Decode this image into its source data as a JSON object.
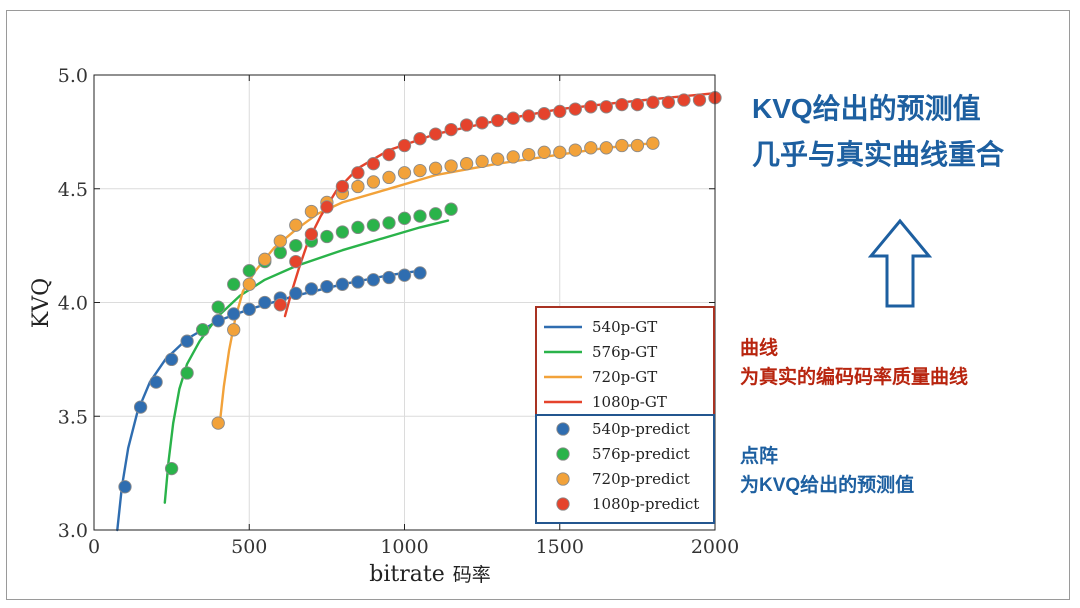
{
  "annotations": {
    "headline_line1": "KVQ给出的预测值",
    "headline_line2": "几乎与真实曲线重合",
    "curve_title": "曲线",
    "curve_desc": "为真实的编码码率质量曲线",
    "dots_title": "点阵",
    "dots_desc": "为KVQ给出的预测值"
  },
  "colors": {
    "540p": "#2f6db0",
    "576p": "#2ab34a",
    "720p": "#f2a23a",
    "1080p": "#e5432c",
    "gt_box": "#a83222",
    "predict_box": "#23568f",
    "annotation_blue": "#1d5fa0",
    "annotation_red": "#b8250f"
  },
  "chart_data": {
    "type": "line",
    "xlabel_main": "bitrate",
    "xlabel_cn": "码率",
    "ylabel": "KVQ",
    "xlim": [
      0,
      2000
    ],
    "ylim": [
      3.0,
      5.0
    ],
    "xticks": [
      0,
      500,
      1000,
      1500,
      2000
    ],
    "yticks": [
      3.0,
      3.5,
      4.0,
      4.5,
      5.0
    ],
    "ytick_labels": [
      "3.0",
      "3.5",
      "4.0",
      "4.5",
      "5.0"
    ],
    "grid": true,
    "legend_placement": "lower-right",
    "gt_series": [
      {
        "name": "540p-GT",
        "color_key": "540p",
        "x": [
          75,
          90,
          110,
          140,
          180,
          230,
          300,
          400,
          500,
          650,
          800,
          950,
          1050
        ],
        "y": [
          3.0,
          3.19,
          3.36,
          3.52,
          3.65,
          3.75,
          3.84,
          3.92,
          3.97,
          4.03,
          4.08,
          4.12,
          4.14
        ]
      },
      {
        "name": "576p-GT",
        "color_key": "576p",
        "x": [
          228,
          240,
          255,
          275,
          300,
          340,
          400,
          470,
          550,
          650,
          800,
          950,
          1050,
          1140
        ],
        "y": [
          3.12,
          3.3,
          3.47,
          3.62,
          3.73,
          3.83,
          3.94,
          4.03,
          4.1,
          4.16,
          4.23,
          4.29,
          4.33,
          4.36
        ]
      },
      {
        "name": "720p-GT",
        "color_key": "720p",
        "x": [
          405,
          418,
          435,
          455,
          480,
          520,
          580,
          650,
          720,
          800,
          950,
          1100,
          1300,
          1500,
          1650,
          1800
        ],
        "y": [
          3.47,
          3.63,
          3.79,
          3.93,
          4.05,
          4.14,
          4.24,
          4.32,
          4.39,
          4.44,
          4.5,
          4.56,
          4.61,
          4.65,
          4.68,
          4.7
        ]
      },
      {
        "name": "1080p-GT",
        "color_key": "1080p",
        "x": [
          615,
          635,
          660,
          690,
          730,
          780,
          850,
          950,
          1100,
          1300,
          1500,
          1700,
          1850,
          2000
        ],
        "y": [
          3.94,
          4.04,
          4.15,
          4.27,
          4.38,
          4.49,
          4.59,
          4.67,
          4.74,
          4.8,
          4.85,
          4.88,
          4.9,
          4.92
        ]
      }
    ],
    "predict_series": [
      {
        "name": "540p-predict",
        "color_key": "540p",
        "x": [
          100,
          150,
          200,
          250,
          300,
          350,
          400,
          450,
          500,
          550,
          600,
          650,
          700,
          750,
          800,
          850,
          900,
          950,
          1000,
          1050
        ],
        "y": [
          3.19,
          3.54,
          3.65,
          3.75,
          3.83,
          3.88,
          3.92,
          3.95,
          3.97,
          4.0,
          4.02,
          4.04,
          4.06,
          4.07,
          4.08,
          4.09,
          4.1,
          4.11,
          4.12,
          4.13
        ]
      },
      {
        "name": "576p-predict",
        "color_key": "576p",
        "x": [
          250,
          300,
          350,
          400,
          450,
          500,
          550,
          600,
          650,
          700,
          750,
          800,
          850,
          900,
          950,
          1000,
          1050,
          1100,
          1150
        ],
        "y": [
          3.27,
          3.69,
          3.88,
          3.98,
          4.08,
          4.14,
          4.18,
          4.22,
          4.25,
          4.27,
          4.29,
          4.31,
          4.33,
          4.34,
          4.35,
          4.37,
          4.38,
          4.39,
          4.41
        ]
      },
      {
        "name": "720p-predict",
        "color_key": "720p",
        "x": [
          400,
          450,
          500,
          550,
          600,
          650,
          700,
          750,
          800,
          850,
          900,
          950,
          1000,
          1050,
          1100,
          1150,
          1200,
          1250,
          1300,
          1350,
          1400,
          1450,
          1500,
          1550,
          1600,
          1650,
          1700,
          1750,
          1800
        ],
        "y": [
          3.47,
          3.88,
          4.08,
          4.19,
          4.27,
          4.34,
          4.4,
          4.44,
          4.48,
          4.51,
          4.53,
          4.55,
          4.57,
          4.58,
          4.59,
          4.6,
          4.61,
          4.62,
          4.63,
          4.64,
          4.65,
          4.66,
          4.66,
          4.67,
          4.68,
          4.68,
          4.69,
          4.69,
          4.7
        ]
      },
      {
        "name": "1080p-predict",
        "color_key": "1080p",
        "x": [
          600,
          650,
          700,
          750,
          800,
          850,
          900,
          950,
          1000,
          1050,
          1100,
          1150,
          1200,
          1250,
          1300,
          1350,
          1400,
          1450,
          1500,
          1550,
          1600,
          1650,
          1700,
          1750,
          1800,
          1850,
          1900,
          1950,
          2000
        ],
        "y": [
          3.99,
          4.18,
          4.3,
          4.42,
          4.51,
          4.57,
          4.61,
          4.65,
          4.69,
          4.72,
          4.74,
          4.76,
          4.78,
          4.79,
          4.8,
          4.81,
          4.82,
          4.83,
          4.84,
          4.85,
          4.86,
          4.86,
          4.87,
          4.87,
          4.88,
          4.88,
          4.89,
          4.89,
          4.9
        ]
      }
    ]
  }
}
